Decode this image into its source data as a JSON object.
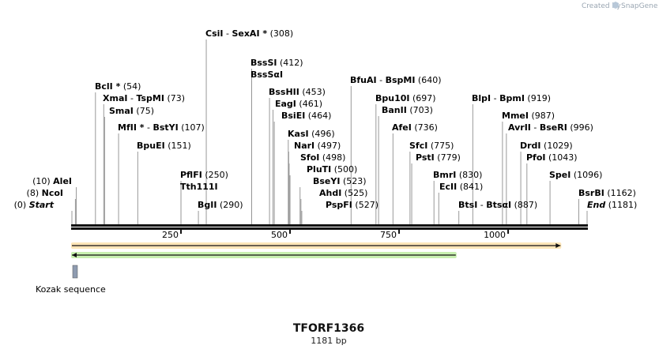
{
  "branding": {
    "created_by": "Created by",
    "app_name": "SnapGene"
  },
  "map": {
    "name": "TFORF1366",
    "length_label": "1181 bp",
    "length_bp": 1181,
    "ruler_ticks": [
      {
        "bp": 250,
        "label": "250"
      },
      {
        "bp": 500,
        "label": "500"
      },
      {
        "bp": 750,
        "label": "750"
      },
      {
        "bp": 1000,
        "label": "1000"
      }
    ]
  },
  "sites": [
    {
      "parts": [
        {
          "t": "CsiI",
          "i": false
        },
        {
          "t": " - ",
          "i": false
        },
        {
          "t": "SexAI *",
          "i": false
        }
      ],
      "pos_label": "(308)",
      "bp": 308
    },
    {
      "parts": [
        {
          "t": "BssSI",
          "i": false
        }
      ],
      "pos_label": "(412)",
      "bp": 412
    },
    {
      "parts": [
        {
          "t": "BssSαI",
          "i": false
        }
      ],
      "pos_label": "",
      "bp": 412
    },
    {
      "parts": [
        {
          "t": "BfuAI",
          "i": false
        },
        {
          "t": " - ",
          "i": false
        },
        {
          "t": "BspMI",
          "i": false
        }
      ],
      "pos_label": "(640)",
      "bp": 640
    },
    {
      "parts": [
        {
          "t": "BclI *",
          "i": false
        }
      ],
      "pos_label": "(54)",
      "bp": 54
    },
    {
      "parts": [
        {
          "t": "BssHII",
          "i": false
        }
      ],
      "pos_label": "(453)",
      "bp": 453
    },
    {
      "parts": [
        {
          "t": "Bpu10I",
          "i": false
        }
      ],
      "pos_label": "(697)",
      "bp": 697
    },
    {
      "parts": [
        {
          "t": "BlpI",
          "i": false
        },
        {
          "t": " - ",
          "i": false
        },
        {
          "t": "BpmI",
          "i": false
        }
      ],
      "pos_label": "(919)",
      "bp": 919
    },
    {
      "parts": [
        {
          "t": "XmaI",
          "i": false
        },
        {
          "t": " - ",
          "i": false
        },
        {
          "t": "TspMI",
          "i": false
        }
      ],
      "pos_label": "(73)",
      "bp": 73
    },
    {
      "parts": [
        {
          "t": "EagI",
          "i": false
        }
      ],
      "pos_label": "(461)",
      "bp": 461
    },
    {
      "parts": [
        {
          "t": "SmaI",
          "i": false
        }
      ],
      "pos_label": "(75)",
      "bp": 75
    },
    {
      "parts": [
        {
          "t": "BsiEI",
          "i": false
        }
      ],
      "pos_label": "(464)",
      "bp": 464
    },
    {
      "parts": [
        {
          "t": "BanII",
          "i": false
        }
      ],
      "pos_label": "(703)",
      "bp": 703
    },
    {
      "parts": [
        {
          "t": "MmeI",
          "i": false
        }
      ],
      "pos_label": "(987)",
      "bp": 987
    },
    {
      "parts": [
        {
          "t": "MfII *",
          "i": false
        },
        {
          "t": " - ",
          "i": false
        },
        {
          "t": "BstYI",
          "i": false
        }
      ],
      "pos_label": "(107)",
      "bp": 107
    },
    {
      "parts": [
        {
          "t": "AfeI",
          "i": false
        }
      ],
      "pos_label": "(736)",
      "bp": 736
    },
    {
      "parts": [
        {
          "t": "AvrII",
          "i": false
        },
        {
          "t": " - ",
          "i": false
        },
        {
          "t": "BseRI",
          "i": false
        }
      ],
      "pos_label": "(996)",
      "bp": 996
    },
    {
      "parts": [
        {
          "t": "KasI",
          "i": false
        }
      ],
      "pos_label": "(496)",
      "bp": 496
    },
    {
      "parts": [
        {
          "t": "BpuEI",
          "i": false
        }
      ],
      "pos_label": "(151)",
      "bp": 151
    },
    {
      "parts": [
        {
          "t": "NarI",
          "i": false
        }
      ],
      "pos_label": "(497)",
      "bp": 497
    },
    {
      "parts": [
        {
          "t": "SfcI",
          "i": false
        }
      ],
      "pos_label": "(775)",
      "bp": 775
    },
    {
      "parts": [
        {
          "t": "DrdI",
          "i": false
        }
      ],
      "pos_label": "(1029)",
      "bp": 1029
    },
    {
      "parts": [
        {
          "t": "SfoI",
          "i": false
        }
      ],
      "pos_label": "(498)",
      "bp": 498
    },
    {
      "parts": [
        {
          "t": "PstI",
          "i": false
        }
      ],
      "pos_label": "(779)",
      "bp": 779
    },
    {
      "parts": [
        {
          "t": "PfoI",
          "i": false
        }
      ],
      "pos_label": "(1043)",
      "bp": 1043
    },
    {
      "parts": [
        {
          "t": "PluTI",
          "i": false
        }
      ],
      "pos_label": "(500)",
      "bp": 500
    },
    {
      "parts": [
        {
          "t": "PflFI",
          "i": false
        }
      ],
      "pos_label": "(250)",
      "bp": 250
    },
    {
      "parts": [
        {
          "t": "BseYI",
          "i": false
        }
      ],
      "pos_label": "(523)",
      "bp": 523
    },
    {
      "parts": [
        {
          "t": "BmrI",
          "i": false
        }
      ],
      "pos_label": "(830)",
      "bp": 830
    },
    {
      "parts": [
        {
          "t": "SpeI",
          "i": false
        }
      ],
      "pos_label": "(1096)",
      "bp": 1096
    },
    {
      "parts": [
        {
          "t": "AleI",
          "i": false
        }
      ],
      "pos_label": "(10)",
      "bp": 10
    },
    {
      "parts": [
        {
          "t": "Tth111I",
          "i": false
        }
      ],
      "pos_label": "",
      "bp": 250
    },
    {
      "parts": [
        {
          "t": "AhdI",
          "i": false
        }
      ],
      "pos_label": "(525)",
      "bp": 525
    },
    {
      "parts": [
        {
          "t": "EcII",
          "i": false
        }
      ],
      "pos_label": "(841)",
      "bp": 841
    },
    {
      "parts": [
        {
          "t": "NcoI",
          "i": false
        }
      ],
      "pos_label": "(8)",
      "bp": 8
    },
    {
      "parts": [
        {
          "t": "BsrBI",
          "i": false
        }
      ],
      "pos_label": "(1162)",
      "bp": 1162
    },
    {
      "parts": [
        {
          "t": "Start",
          "i": true
        }
      ],
      "pos_label": "(0)",
      "bp": 0
    },
    {
      "parts": [
        {
          "t": "BgII",
          "i": false
        }
      ],
      "pos_label": "(290)",
      "bp": 290
    },
    {
      "parts": [
        {
          "t": "PspFI",
          "i": false
        }
      ],
      "pos_label": "(527)",
      "bp": 527
    },
    {
      "parts": [
        {
          "t": "BtsI",
          "i": false
        },
        {
          "t": " - ",
          "i": false
        },
        {
          "t": "BtsαI",
          "i": false
        }
      ],
      "pos_label": "(887)",
      "bp": 887
    },
    {
      "parts": [
        {
          "t": "End",
          "i": true
        }
      ],
      "pos_label": "(1181)",
      "bp": 1181
    }
  ],
  "features": [
    {
      "name": "forward-orf",
      "start_bp": 0,
      "end_bp": 1120,
      "direction": "forward",
      "color": "#f5a623",
      "fill": "#ffe6b8"
    },
    {
      "name": "reverse-orf",
      "start_bp": 0,
      "end_bp": 880,
      "direction": "reverse",
      "color": "#4aa02c",
      "fill": "#c8f0b0"
    },
    {
      "name": "kozak",
      "label": "Kozak sequence",
      "start_bp": 0,
      "end_bp": 8,
      "color": "#8e9bb0"
    }
  ]
}
